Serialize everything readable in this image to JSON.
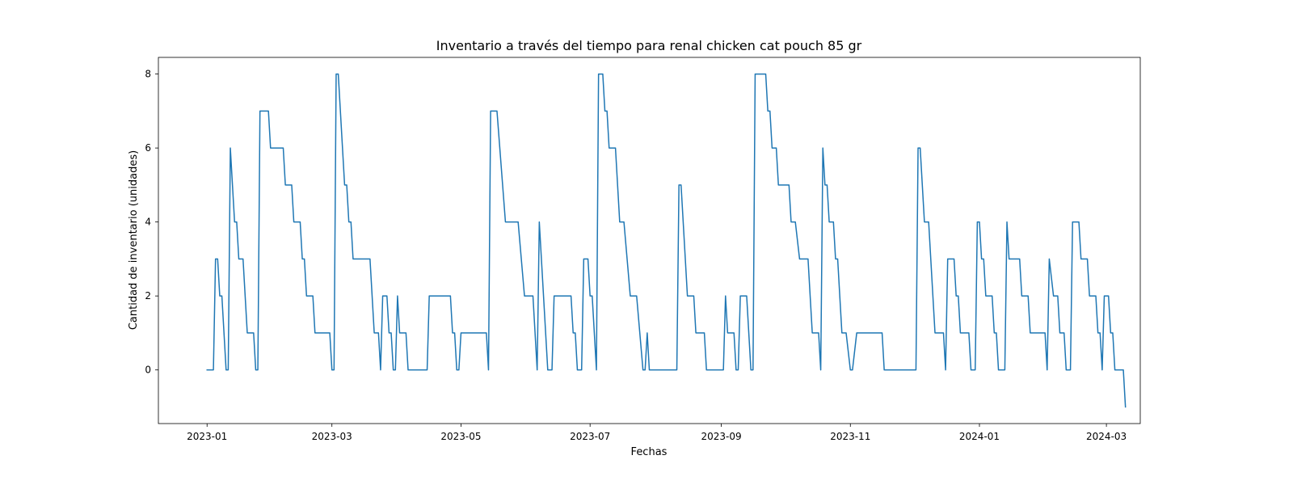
{
  "chart_data": {
    "type": "line",
    "title": "Inventario a través del tiempo para renal chicken cat pouch 85 gr",
    "xlabel": "Fechas",
    "ylabel": "Cantidad de inventario (unidades)",
    "xlim": [
      "2022-12-09",
      "2024-03-17"
    ],
    "ylim": [
      -1.45,
      8.45
    ],
    "xticks": [
      {
        "date": "2023-01-01",
        "label": "2023-01"
      },
      {
        "date": "2023-03-01",
        "label": "2023-03"
      },
      {
        "date": "2023-05-01",
        "label": "2023-05"
      },
      {
        "date": "2023-07-01",
        "label": "2023-07"
      },
      {
        "date": "2023-09-01",
        "label": "2023-09"
      },
      {
        "date": "2023-11-01",
        "label": "2023-11"
      },
      {
        "date": "2024-01-01",
        "label": "2024-01"
      },
      {
        "date": "2024-03-01",
        "label": "2024-03"
      }
    ],
    "yticks": [
      0,
      2,
      4,
      6,
      8
    ],
    "grid": false,
    "line_color": "#1f77b4",
    "series": [
      {
        "points": [
          [
            "2023-01-01",
            0
          ],
          [
            "2023-01-04",
            0
          ],
          [
            "2023-01-05",
            3
          ],
          [
            "2023-01-06",
            3
          ],
          [
            "2023-01-07",
            2
          ],
          [
            "2023-01-08",
            2
          ],
          [
            "2023-01-10",
            0
          ],
          [
            "2023-01-11",
            0
          ],
          [
            "2023-01-12",
            6
          ],
          [
            "2023-01-14",
            4
          ],
          [
            "2023-01-15",
            4
          ],
          [
            "2023-01-16",
            3
          ],
          [
            "2023-01-18",
            3
          ],
          [
            "2023-01-20",
            1
          ],
          [
            "2023-01-23",
            1
          ],
          [
            "2023-01-24",
            0
          ],
          [
            "2023-01-25",
            0
          ],
          [
            "2023-01-26",
            7
          ],
          [
            "2023-01-30",
            7
          ],
          [
            "2023-01-31",
            6
          ],
          [
            "2023-02-06",
            6
          ],
          [
            "2023-02-07",
            5
          ],
          [
            "2023-02-10",
            5
          ],
          [
            "2023-02-11",
            4
          ],
          [
            "2023-02-14",
            4
          ],
          [
            "2023-02-15",
            3
          ],
          [
            "2023-02-16",
            3
          ],
          [
            "2023-02-17",
            2
          ],
          [
            "2023-02-20",
            2
          ],
          [
            "2023-02-21",
            1
          ],
          [
            "2023-02-28",
            1
          ],
          [
            "2023-03-01",
            0
          ],
          [
            "2023-03-02",
            0
          ],
          [
            "2023-03-03",
            8
          ],
          [
            "2023-03-04",
            8
          ],
          [
            "2023-03-07",
            5
          ],
          [
            "2023-03-08",
            5
          ],
          [
            "2023-03-09",
            4
          ],
          [
            "2023-03-10",
            4
          ],
          [
            "2023-03-11",
            3
          ],
          [
            "2023-03-19",
            3
          ],
          [
            "2023-03-21",
            1
          ],
          [
            "2023-03-23",
            1
          ],
          [
            "2023-03-24",
            0
          ],
          [
            "2023-03-25",
            2
          ],
          [
            "2023-03-27",
            2
          ],
          [
            "2023-03-28",
            1
          ],
          [
            "2023-03-29",
            1
          ],
          [
            "2023-03-30",
            0
          ],
          [
            "2023-03-31",
            0
          ],
          [
            "2023-04-01",
            2
          ],
          [
            "2023-04-02",
            1
          ],
          [
            "2023-04-05",
            1
          ],
          [
            "2023-04-06",
            0
          ],
          [
            "2023-04-15",
            0
          ],
          [
            "2023-04-16",
            2
          ],
          [
            "2023-04-26",
            2
          ],
          [
            "2023-04-27",
            1
          ],
          [
            "2023-04-28",
            1
          ],
          [
            "2023-04-29",
            0
          ],
          [
            "2023-04-30",
            0
          ],
          [
            "2023-05-01",
            1
          ],
          [
            "2023-05-13",
            1
          ],
          [
            "2023-05-14",
            0
          ],
          [
            "2023-05-15",
            7
          ],
          [
            "2023-05-18",
            7
          ],
          [
            "2023-05-22",
            4
          ],
          [
            "2023-05-28",
            4
          ],
          [
            "2023-05-31",
            2
          ],
          [
            "2023-06-04",
            2
          ],
          [
            "2023-06-06",
            0
          ],
          [
            "2023-06-07",
            4
          ],
          [
            "2023-06-10",
            1
          ],
          [
            "2023-06-11",
            0
          ],
          [
            "2023-06-13",
            0
          ],
          [
            "2023-06-14",
            2
          ],
          [
            "2023-06-22",
            2
          ],
          [
            "2023-06-23",
            1
          ],
          [
            "2023-06-24",
            1
          ],
          [
            "2023-06-25",
            0
          ],
          [
            "2023-06-27",
            0
          ],
          [
            "2023-06-28",
            3
          ],
          [
            "2023-06-30",
            3
          ],
          [
            "2023-07-01",
            2
          ],
          [
            "2023-07-02",
            2
          ],
          [
            "2023-07-04",
            0
          ],
          [
            "2023-07-05",
            8
          ],
          [
            "2023-07-07",
            8
          ],
          [
            "2023-07-08",
            7
          ],
          [
            "2023-07-09",
            7
          ],
          [
            "2023-07-10",
            6
          ],
          [
            "2023-07-13",
            6
          ],
          [
            "2023-07-15",
            4
          ],
          [
            "2023-07-17",
            4
          ],
          [
            "2023-07-20",
            2
          ],
          [
            "2023-07-23",
            2
          ],
          [
            "2023-07-26",
            0
          ],
          [
            "2023-07-27",
            0
          ],
          [
            "2023-07-28",
            1
          ],
          [
            "2023-07-29",
            0
          ],
          [
            "2023-08-11",
            0
          ],
          [
            "2023-08-12",
            5
          ],
          [
            "2023-08-13",
            5
          ],
          [
            "2023-08-16",
            2
          ],
          [
            "2023-08-19",
            2
          ],
          [
            "2023-08-20",
            1
          ],
          [
            "2023-08-24",
            1
          ],
          [
            "2023-08-25",
            0
          ],
          [
            "2023-09-02",
            0
          ],
          [
            "2023-09-03",
            2
          ],
          [
            "2023-09-04",
            1
          ],
          [
            "2023-09-07",
            1
          ],
          [
            "2023-09-08",
            0
          ],
          [
            "2023-09-09",
            0
          ],
          [
            "2023-09-10",
            2
          ],
          [
            "2023-09-13",
            2
          ],
          [
            "2023-09-15",
            0
          ],
          [
            "2023-09-16",
            0
          ],
          [
            "2023-09-17",
            8
          ],
          [
            "2023-09-22",
            8
          ],
          [
            "2023-09-23",
            7
          ],
          [
            "2023-09-24",
            7
          ],
          [
            "2023-09-25",
            6
          ],
          [
            "2023-09-27",
            6
          ],
          [
            "2023-09-28",
            5
          ],
          [
            "2023-10-03",
            5
          ],
          [
            "2023-10-04",
            4
          ],
          [
            "2023-10-06",
            4
          ],
          [
            "2023-10-08",
            3
          ],
          [
            "2023-10-12",
            3
          ],
          [
            "2023-10-14",
            1
          ],
          [
            "2023-10-17",
            1
          ],
          [
            "2023-10-18",
            0
          ],
          [
            "2023-10-19",
            6
          ],
          [
            "2023-10-20",
            5
          ],
          [
            "2023-10-21",
            5
          ],
          [
            "2023-10-22",
            4
          ],
          [
            "2023-10-24",
            4
          ],
          [
            "2023-10-25",
            3
          ],
          [
            "2023-10-26",
            3
          ],
          [
            "2023-10-28",
            1
          ],
          [
            "2023-10-30",
            1
          ],
          [
            "2023-11-01",
            0
          ],
          [
            "2023-11-02",
            0
          ],
          [
            "2023-11-04",
            1
          ],
          [
            "2023-11-16",
            1
          ],
          [
            "2023-11-17",
            0
          ],
          [
            "2023-12-02",
            0
          ],
          [
            "2023-12-03",
            6
          ],
          [
            "2023-12-04",
            6
          ],
          [
            "2023-12-06",
            4
          ],
          [
            "2023-12-08",
            4
          ],
          [
            "2023-12-11",
            1
          ],
          [
            "2023-12-15",
            1
          ],
          [
            "2023-12-16",
            0
          ],
          [
            "2023-12-17",
            3
          ],
          [
            "2023-12-20",
            3
          ],
          [
            "2023-12-21",
            2
          ],
          [
            "2023-12-22",
            2
          ],
          [
            "2023-12-23",
            1
          ],
          [
            "2023-12-27",
            1
          ],
          [
            "2023-12-28",
            0
          ],
          [
            "2023-12-30",
            0
          ],
          [
            "2023-12-31",
            4
          ],
          [
            "2024-01-01",
            4
          ],
          [
            "2024-01-02",
            3
          ],
          [
            "2024-01-03",
            3
          ],
          [
            "2024-01-04",
            2
          ],
          [
            "2024-01-07",
            2
          ],
          [
            "2024-01-08",
            1
          ],
          [
            "2024-01-09",
            1
          ],
          [
            "2024-01-10",
            0
          ],
          [
            "2024-01-13",
            0
          ],
          [
            "2024-01-14",
            4
          ],
          [
            "2024-01-15",
            3
          ],
          [
            "2024-01-20",
            3
          ],
          [
            "2024-01-21",
            2
          ],
          [
            "2024-01-24",
            2
          ],
          [
            "2024-01-25",
            1
          ],
          [
            "2024-02-01",
            1
          ],
          [
            "2024-02-02",
            0
          ],
          [
            "2024-02-03",
            3
          ],
          [
            "2024-02-05",
            2
          ],
          [
            "2024-02-07",
            2
          ],
          [
            "2024-02-08",
            1
          ],
          [
            "2024-02-10",
            1
          ],
          [
            "2024-02-11",
            0
          ],
          [
            "2024-02-13",
            0
          ],
          [
            "2024-02-14",
            4
          ],
          [
            "2024-02-17",
            4
          ],
          [
            "2024-02-18",
            3
          ],
          [
            "2024-02-21",
            3
          ],
          [
            "2024-02-22",
            2
          ],
          [
            "2024-02-25",
            2
          ],
          [
            "2024-02-26",
            1
          ],
          [
            "2024-02-27",
            1
          ],
          [
            "2024-02-28",
            0
          ],
          [
            "2024-02-29",
            2
          ],
          [
            "2024-03-02",
            2
          ],
          [
            "2024-03-03",
            1
          ],
          [
            "2024-03-04",
            1
          ],
          [
            "2024-03-05",
            0
          ],
          [
            "2024-03-09",
            0
          ],
          [
            "2024-03-10",
            -1
          ]
        ]
      }
    ]
  }
}
